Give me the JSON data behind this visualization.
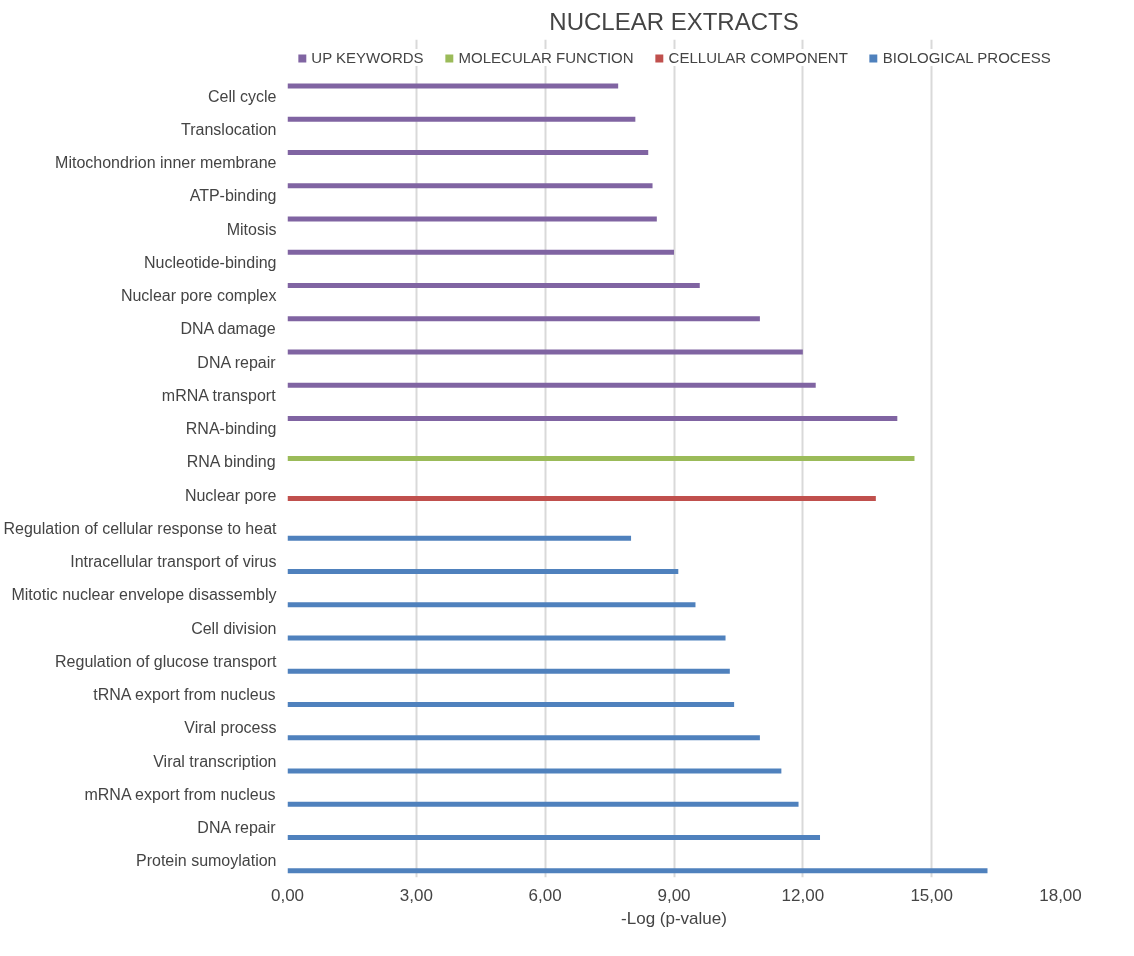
{
  "chart_data": {
    "type": "bar",
    "orientation": "horizontal",
    "title": "NUCLEAR EXTRACTS",
    "xlabel": "-Log (p-value)",
    "categories": [
      "Cell cycle",
      "Translocation",
      "Mitochondrion inner membrane",
      "ATP-binding",
      "Mitosis",
      "Nucleotide-binding",
      "Nuclear pore complex",
      "DNA damage",
      "DNA repair",
      "mRNA transport",
      "RNA-binding",
      "RNA binding",
      "Nuclear pore",
      "Regulation of cellular response to heat",
      "Intracellular transport of virus",
      "Mitotic nuclear envelope disassembly",
      "Cell division",
      "Regulation of glucose transport",
      "tRNA export from nucleus",
      "Viral process",
      "Viral transcription",
      "mRNA export from nucleus",
      "DNA repair",
      "Protein sumoylation"
    ],
    "series": [
      {
        "name": "UP KEYWORDS",
        "color": "#8064a2",
        "values": [
          7.7,
          8.1,
          8.4,
          8.5,
          8.6,
          9.0,
          9.6,
          11.0,
          12.0,
          12.3,
          14.2,
          null,
          null,
          null,
          null,
          null,
          null,
          null,
          null,
          null,
          null,
          null,
          null,
          null
        ]
      },
      {
        "name": "MOLECULAR FUNCTION",
        "color": "#9bbb59",
        "values": [
          null,
          null,
          null,
          null,
          null,
          null,
          null,
          null,
          null,
          null,
          null,
          14.6,
          null,
          null,
          null,
          null,
          null,
          null,
          null,
          null,
          null,
          null,
          null,
          null
        ]
      },
      {
        "name": "CELLULAR COMPONENT",
        "color": "#c0504d",
        "values": [
          null,
          null,
          null,
          null,
          null,
          null,
          null,
          null,
          null,
          null,
          null,
          null,
          13.7,
          null,
          null,
          null,
          null,
          null,
          null,
          null,
          null,
          null,
          null,
          null
        ]
      },
      {
        "name": "BIOLOGICAL PROCESS",
        "color": "#4f81bd",
        "values": [
          null,
          null,
          null,
          null,
          null,
          null,
          null,
          null,
          null,
          null,
          null,
          null,
          null,
          8.0,
          9.1,
          9.5,
          10.2,
          10.3,
          10.4,
          11.0,
          11.5,
          11.9,
          12.4,
          16.3
        ]
      }
    ],
    "xlim": [
      0,
      18
    ],
    "xticks": [
      {
        "value": 0,
        "label": "0,00"
      },
      {
        "value": 3,
        "label": "3,00"
      },
      {
        "value": 6,
        "label": "6,00"
      },
      {
        "value": 9,
        "label": "9,00"
      },
      {
        "value": 12,
        "label": "12,00"
      },
      {
        "value": 15,
        "label": "15,00"
      },
      {
        "value": 18,
        "label": "18,00"
      }
    ],
    "grid": "x",
    "legend": "top"
  }
}
